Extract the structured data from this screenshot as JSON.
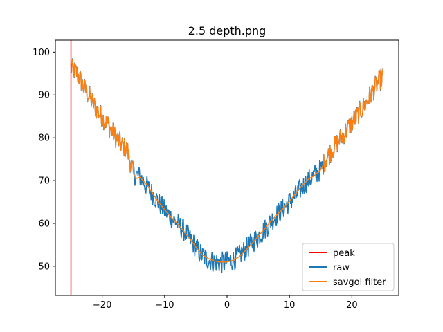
{
  "chart_data": {
    "type": "line",
    "title": "2.5 depth.png",
    "xlabel": "",
    "ylabel": "",
    "xlim": [
      -27.5,
      27.5
    ],
    "ylim": [
      43.2,
      102.8
    ],
    "xticks": [
      -20,
      -10,
      0,
      10,
      20
    ],
    "xtick_labels": [
      "−20",
      "−10",
      "0",
      "10",
      "20"
    ],
    "yticks": [
      50,
      60,
      70,
      80,
      90,
      100
    ],
    "ytick_labels": [
      "50",
      "60",
      "70",
      "80",
      "90",
      "100"
    ],
    "grid": false,
    "legend_position": "lower-right",
    "series": [
      {
        "name": "peak",
        "kind": "vline",
        "color": "#ff0000",
        "x": -25
      },
      {
        "name": "raw",
        "color": "#1f77b4",
        "x": [
          -25,
          -24,
          -23,
          -22,
          -21,
          -20,
          -19,
          -18,
          -17,
          -16,
          -15,
          -14,
          -13,
          -12,
          -11,
          -10,
          -9,
          -8,
          -7,
          -6,
          -5,
          -4,
          -3,
          -2,
          -1,
          0,
          1,
          2,
          3,
          4,
          5,
          6,
          7,
          8,
          9,
          10,
          11,
          12,
          13,
          14,
          15,
          16,
          17,
          18,
          19,
          20,
          21,
          22,
          23,
          24,
          25
        ],
        "y": [
          96.3,
          95,
          92,
          89.5,
          86.8,
          84.8,
          83,
          80.5,
          78.5,
          77.3,
          71.5,
          71,
          69,
          67,
          65,
          63,
          61.5,
          60,
          58.5,
          56.5,
          54.5,
          52.5,
          51.5,
          51,
          50.8,
          51,
          51.5,
          52.5,
          54,
          55.5,
          57,
          58.5,
          60.5,
          62,
          63.5,
          65,
          66.5,
          68.5,
          70,
          71.3,
          72.5,
          75.5,
          77.5,
          79.5,
          81.5,
          83.5,
          85.5,
          87.5,
          90,
          92.5,
          94.3
        ],
        "noise": 2.6
      },
      {
        "name": "savgol filter",
        "color": "#ff7f0e",
        "x": [
          -25,
          -24,
          -23,
          -22,
          -21,
          -20,
          -19,
          -18,
          -17,
          -16,
          -15,
          -14.5,
          -14,
          -13,
          -12,
          -11,
          -10,
          -9,
          -8,
          -7,
          -6,
          -5,
          -4,
          -3,
          -2,
          -1,
          0,
          1,
          2,
          3,
          4,
          5,
          6,
          7,
          8,
          9,
          10,
          11,
          12,
          13,
          14,
          15,
          16,
          17,
          18,
          19,
          20,
          21,
          22,
          23,
          24,
          25
        ],
        "y": [
          96.3,
          95,
          92,
          89.5,
          86.8,
          84.8,
          83,
          80.5,
          78.5,
          77.3,
          71.5,
          70.5,
          70.8,
          69.3,
          67.2,
          65,
          63.2,
          61.5,
          60,
          58.3,
          56.5,
          54.5,
          52.7,
          51.8,
          51.2,
          51,
          51,
          51.4,
          52.3,
          53.7,
          55.3,
          57,
          58.7,
          60.5,
          62,
          63.5,
          65.2,
          67,
          68.8,
          70.3,
          71.2,
          72.5,
          75.5,
          77.5,
          79.5,
          81.5,
          83.5,
          85.5,
          87.5,
          90,
          92.5,
          94.3
        ],
        "noisy_ranges": [
          [
            -25,
            -15
          ],
          [
            15.5,
            25
          ]
        ],
        "noise": 2.6
      }
    ]
  }
}
